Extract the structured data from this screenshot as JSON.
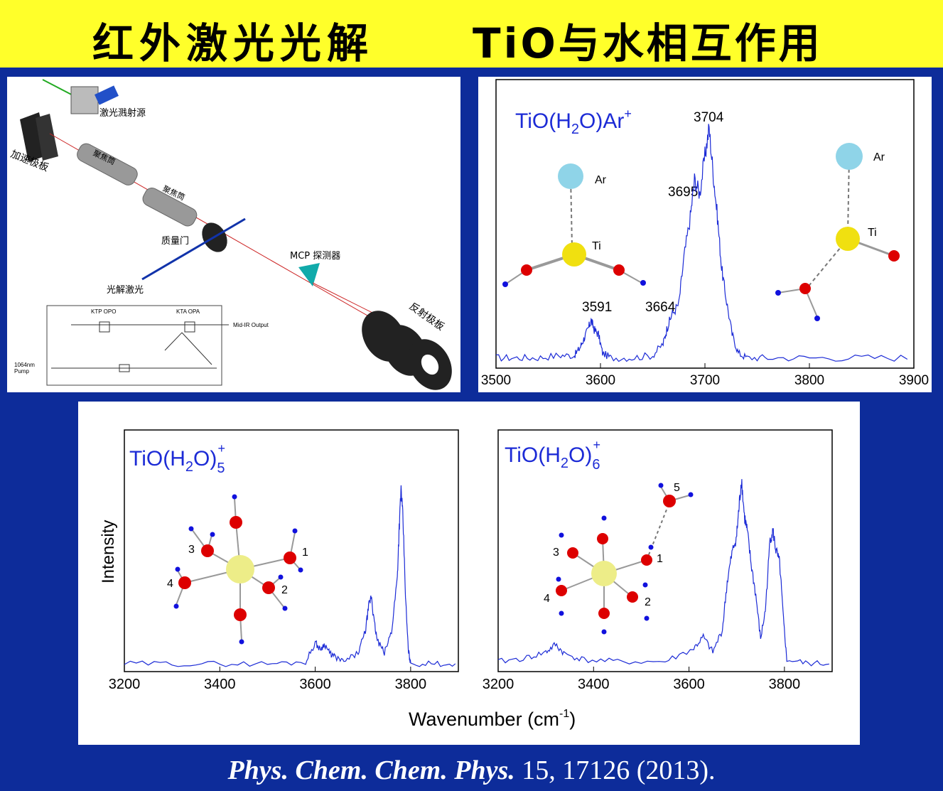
{
  "title": {
    "left": "红外激光光解",
    "right": "TiO与水相互作用"
  },
  "apparatus": {
    "labels": {
      "source": "激光溅射源",
      "accel": "加速极板",
      "lens1": "聚焦筒",
      "lens2": "聚焦筒",
      "gate": "质量门",
      "photolysis": "光解激光",
      "detector": "MCP 探测器",
      "reflector": "反射极板"
    },
    "opo": {
      "ktp": "KTP OPO",
      "kta": "KTA OPA",
      "out": "Mid-IR Output",
      "pump1": "1064nm",
      "pump2": "Pump"
    }
  },
  "colors": {
    "accent": "#1c2bd6",
    "title_bg": "#ffff2a",
    "page_bg": "#0d2c9a"
  },
  "chart_data": [
    {
      "type": "line",
      "title": "TiO(H2O)Ar+",
      "xlabel": "",
      "ylabel": "",
      "xlim": [
        3500,
        3900
      ],
      "x_ticks": [
        "3500",
        "3600",
        "3700",
        "3800",
        "3900"
      ],
      "series": [
        {
          "x": [
            3500,
            3520,
            3540,
            3560,
            3575,
            3580,
            3584,
            3588,
            3591,
            3594,
            3598,
            3602,
            3610,
            3630,
            3650,
            3660,
            3664,
            3668,
            3675,
            3680,
            3686,
            3690,
            3695,
            3700,
            3704,
            3708,
            3712,
            3716,
            3720,
            3726,
            3732,
            3740,
            3760,
            3800,
            3850,
            3900
          ],
          "y": [
            0.02,
            0.02,
            0.02,
            0.03,
            0.03,
            0.06,
            0.1,
            0.14,
            0.18,
            0.14,
            0.12,
            0.04,
            0.02,
            0.02,
            0.03,
            0.08,
            0.15,
            0.2,
            0.25,
            0.45,
            0.62,
            0.78,
            0.72,
            0.88,
            1.0,
            0.8,
            0.62,
            0.4,
            0.28,
            0.12,
            0.04,
            0.02,
            0.02,
            0.02,
            0.02,
            0.02
          ]
        }
      ],
      "annotations": [
        "3591",
        "3664",
        "3695",
        "3704"
      ],
      "labels": {
        "ar": "Ar",
        "ti": "Ti"
      }
    },
    {
      "type": "line",
      "title": "TiO(H2O)5+",
      "xlabel": "Wavenumber (cm-1)",
      "ylabel": "Intensity",
      "xlim": [
        3200,
        3900
      ],
      "x_ticks": [
        "3200",
        "3400",
        "3600",
        "3800"
      ],
      "series": [
        {
          "x": [
            3200,
            3300,
            3400,
            3500,
            3580,
            3600,
            3610,
            3620,
            3630,
            3640,
            3660,
            3690,
            3705,
            3712,
            3718,
            3722,
            3730,
            3745,
            3760,
            3772,
            3776,
            3780,
            3784,
            3790,
            3795,
            3800,
            3850,
            3900
          ],
          "y": [
            0.02,
            0.02,
            0.02,
            0.02,
            0.03,
            0.14,
            0.1,
            0.13,
            0.08,
            0.06,
            0.03,
            0.08,
            0.2,
            0.34,
            0.4,
            0.28,
            0.15,
            0.08,
            0.2,
            0.5,
            0.78,
            1.0,
            0.82,
            0.35,
            0.1,
            0.02,
            0.02,
            0.02
          ]
        }
      ],
      "labels": {
        "n1": "1",
        "n2": "2",
        "n3": "3",
        "n4": "4"
      }
    },
    {
      "type": "line",
      "title": "TiO(H2O)6+",
      "xlabel": "Wavenumber (cm-1)",
      "ylabel": "",
      "xlim": [
        3200,
        3900
      ],
      "x_ticks": [
        "3200",
        "3400",
        "3600",
        "3800"
      ],
      "series": [
        {
          "x": [
            3200,
            3260,
            3300,
            3320,
            3340,
            3380,
            3450,
            3550,
            3610,
            3630,
            3650,
            3670,
            3680,
            3690,
            3700,
            3705,
            3710,
            3716,
            3722,
            3730,
            3740,
            3750,
            3760,
            3770,
            3776,
            3782,
            3790,
            3798,
            3805,
            3850,
            3900
          ],
          "y": [
            0.03,
            0.05,
            0.08,
            0.12,
            0.07,
            0.04,
            0.03,
            0.03,
            0.1,
            0.16,
            0.08,
            0.2,
            0.45,
            0.6,
            0.7,
            0.85,
            1.0,
            0.8,
            0.72,
            0.55,
            0.38,
            0.15,
            0.3,
            0.68,
            0.72,
            0.62,
            0.55,
            0.25,
            0.04,
            0.02,
            0.02
          ]
        }
      ],
      "labels": {
        "n1": "1",
        "n2": "2",
        "n3": "3",
        "n4": "4",
        "n5": "5"
      }
    }
  ],
  "citation": {
    "journal": "Phys. Chem. Chem. Phys.",
    "rest": " 15, 17126 (2013)."
  }
}
